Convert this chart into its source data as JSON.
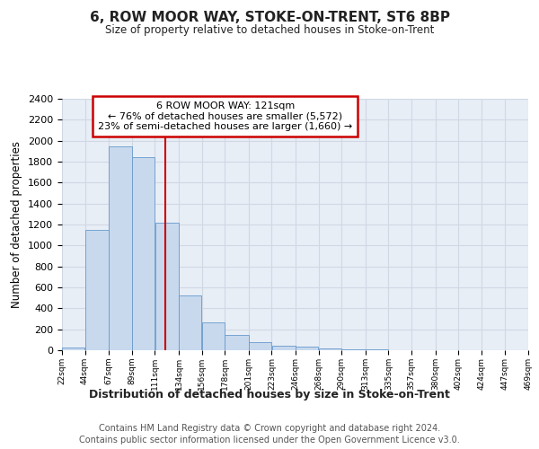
{
  "title": "6, ROW MOOR WAY, STOKE-ON-TRENT, ST6 8BP",
  "subtitle": "Size of property relative to detached houses in Stoke-on-Trent",
  "xlabel": "Distribution of detached houses by size in Stoke-on-Trent",
  "ylabel": "Number of detached properties",
  "footer_line1": "Contains HM Land Registry data © Crown copyright and database right 2024.",
  "footer_line2": "Contains public sector information licensed under the Open Government Licence v3.0.",
  "annotation_line1": "6 ROW MOOR WAY: 121sqm",
  "annotation_line2": "← 76% of detached houses are smaller (5,572)",
  "annotation_line3": "23% of semi-detached houses are larger (1,660) →",
  "bar_left_edges": [
    22,
    44,
    67,
    89,
    111,
    134,
    156,
    178,
    201,
    223,
    246,
    268,
    290,
    313,
    335,
    357,
    380,
    402,
    424,
    447
  ],
  "bar_widths": [
    22,
    23,
    22,
    22,
    23,
    22,
    22,
    23,
    22,
    23,
    22,
    22,
    23,
    22,
    22,
    23,
    22,
    22,
    23,
    22
  ],
  "bar_heights": [
    25,
    1150,
    1950,
    1840,
    1220,
    520,
    265,
    145,
    80,
    45,
    35,
    20,
    10,
    5,
    3,
    2,
    1,
    1,
    1,
    1
  ],
  "xtick_labels": [
    "22sqm",
    "44sqm",
    "67sqm",
    "89sqm",
    "111sqm",
    "134sqm",
    "156sqm",
    "178sqm",
    "201sqm",
    "223sqm",
    "246sqm",
    "268sqm",
    "290sqm",
    "313sqm",
    "335sqm",
    "357sqm",
    "380sqm",
    "402sqm",
    "424sqm",
    "447sqm",
    "469sqm"
  ],
  "bar_color": "#c8d9ee",
  "bar_edge_color": "#6699cc",
  "grid_color": "#d0d8e4",
  "vline_x": 121,
  "vline_color": "#cc0000",
  "annotation_box_color": "#cc0000",
  "ylim": [
    0,
    2400
  ],
  "yticks": [
    0,
    200,
    400,
    600,
    800,
    1000,
    1200,
    1400,
    1600,
    1800,
    2000,
    2200,
    2400
  ],
  "bg_color": "#e8eef6",
  "fig_bg_color": "#ffffff"
}
